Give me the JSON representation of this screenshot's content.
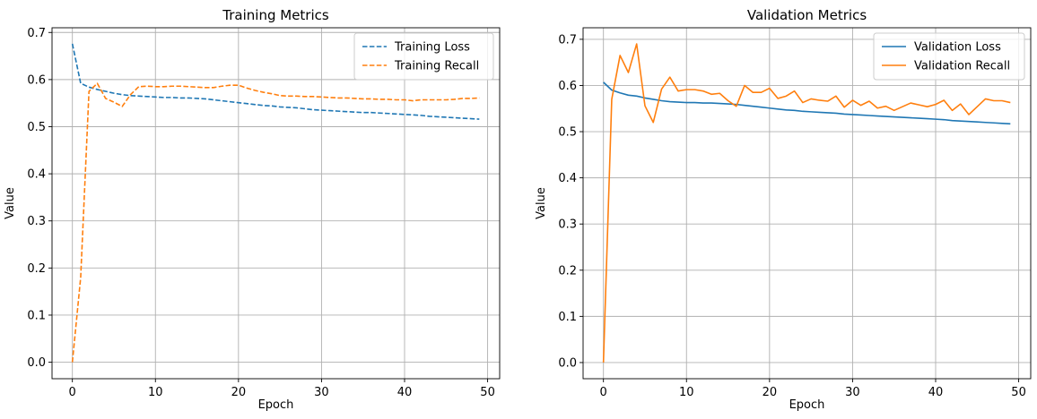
{
  "chart_data": [
    {
      "type": "line",
      "title": "Training Metrics",
      "xlabel": "Epoch",
      "ylabel": "Value",
      "xlim": [
        -2.45,
        51.45
      ],
      "ylim": [
        -0.035,
        0.71
      ],
      "xticks": [
        0,
        10,
        20,
        30,
        40,
        50
      ],
      "yticks": [
        0.0,
        0.1,
        0.2,
        0.3,
        0.4,
        0.5,
        0.6,
        0.7
      ],
      "xtick_labels": [
        "0",
        "10",
        "20",
        "30",
        "40",
        "50"
      ],
      "ytick_labels": [
        "0.0",
        "0.1",
        "0.2",
        "0.3",
        "0.4",
        "0.5",
        "0.6",
        "0.7"
      ],
      "grid": true,
      "legend_position": "upper-right",
      "x": [
        0,
        1,
        2,
        3,
        4,
        5,
        6,
        7,
        8,
        9,
        10,
        11,
        12,
        13,
        14,
        15,
        16,
        17,
        18,
        19,
        20,
        21,
        22,
        23,
        24,
        25,
        26,
        27,
        28,
        29,
        30,
        31,
        32,
        33,
        34,
        35,
        36,
        37,
        38,
        39,
        40,
        41,
        42,
        43,
        44,
        45,
        46,
        47,
        48,
        49
      ],
      "series": [
        {
          "name": "Training Loss",
          "color": "#1f77b4",
          "dash": "dashed",
          "values": [
            0.676,
            0.592,
            0.584,
            0.579,
            0.575,
            0.571,
            0.568,
            0.566,
            0.565,
            0.564,
            0.563,
            0.562,
            0.562,
            0.561,
            0.561,
            0.56,
            0.559,
            0.557,
            0.555,
            0.553,
            0.551,
            0.549,
            0.547,
            0.545,
            0.544,
            0.542,
            0.541,
            0.54,
            0.538,
            0.536,
            0.535,
            0.534,
            0.533,
            0.532,
            0.531,
            0.53,
            0.53,
            0.529,
            0.528,
            0.527,
            0.526,
            0.525,
            0.524,
            0.522,
            0.521,
            0.52,
            0.519,
            0.518,
            0.517,
            0.516
          ]
        },
        {
          "name": "Training Recall",
          "color": "#ff7f0e",
          "dash": "dashed",
          "values": [
            0.0,
            0.18,
            0.575,
            0.592,
            0.56,
            0.552,
            0.543,
            0.568,
            0.585,
            0.586,
            0.585,
            0.585,
            0.586,
            0.586,
            0.585,
            0.584,
            0.583,
            0.583,
            0.586,
            0.588,
            0.588,
            0.582,
            0.577,
            0.573,
            0.57,
            0.566,
            0.565,
            0.565,
            0.564,
            0.564,
            0.563,
            0.562,
            0.561,
            0.561,
            0.56,
            0.559,
            0.559,
            0.558,
            0.558,
            0.557,
            0.557,
            0.555,
            0.557,
            0.557,
            0.557,
            0.557,
            0.558,
            0.56,
            0.56,
            0.561
          ]
        }
      ]
    },
    {
      "type": "line",
      "title": "Validation Metrics",
      "xlabel": "Epoch",
      "ylabel": "Value",
      "xlim": [
        -2.45,
        51.45
      ],
      "ylim": [
        -0.035,
        0.725
      ],
      "xticks": [
        0,
        10,
        20,
        30,
        40,
        50
      ],
      "yticks": [
        0.0,
        0.1,
        0.2,
        0.3,
        0.4,
        0.5,
        0.6,
        0.7
      ],
      "xtick_labels": [
        "0",
        "10",
        "20",
        "30",
        "40",
        "50"
      ],
      "ytick_labels": [
        "0.0",
        "0.1",
        "0.2",
        "0.3",
        "0.4",
        "0.5",
        "0.6",
        "0.7"
      ],
      "grid": true,
      "legend_position": "upper-right",
      "x": [
        0,
        1,
        2,
        3,
        4,
        5,
        6,
        7,
        8,
        9,
        10,
        11,
        12,
        13,
        14,
        15,
        16,
        17,
        18,
        19,
        20,
        21,
        22,
        23,
        24,
        25,
        26,
        27,
        28,
        29,
        30,
        31,
        32,
        33,
        34,
        35,
        36,
        37,
        38,
        39,
        40,
        41,
        42,
        43,
        44,
        45,
        46,
        47,
        48,
        49
      ],
      "series": [
        {
          "name": "Validation Loss",
          "color": "#1f77b4",
          "dash": "solid",
          "values": [
            0.607,
            0.59,
            0.584,
            0.579,
            0.577,
            0.573,
            0.57,
            0.567,
            0.565,
            0.564,
            0.563,
            0.563,
            0.562,
            0.562,
            0.561,
            0.56,
            0.559,
            0.557,
            0.555,
            0.553,
            0.551,
            0.549,
            0.547,
            0.546,
            0.544,
            0.543,
            0.542,
            0.541,
            0.54,
            0.538,
            0.537,
            0.536,
            0.535,
            0.534,
            0.533,
            0.532,
            0.531,
            0.53,
            0.529,
            0.528,
            0.527,
            0.526,
            0.524,
            0.523,
            0.522,
            0.521,
            0.52,
            0.519,
            0.518,
            0.517
          ]
        },
        {
          "name": "Validation Recall",
          "color": "#ff7f0e",
          "dash": "solid",
          "values": [
            0.0,
            0.57,
            0.665,
            0.628,
            0.69,
            0.556,
            0.52,
            0.592,
            0.618,
            0.588,
            0.591,
            0.591,
            0.588,
            0.581,
            0.583,
            0.567,
            0.555,
            0.6,
            0.585,
            0.585,
            0.594,
            0.572,
            0.577,
            0.588,
            0.563,
            0.571,
            0.568,
            0.566,
            0.577,
            0.553,
            0.568,
            0.557,
            0.566,
            0.551,
            0.555,
            0.546,
            0.554,
            0.562,
            0.558,
            0.554,
            0.559,
            0.568,
            0.546,
            0.56,
            0.537,
            0.554,
            0.571,
            0.567,
            0.567,
            0.563
          ]
        }
      ]
    }
  ]
}
